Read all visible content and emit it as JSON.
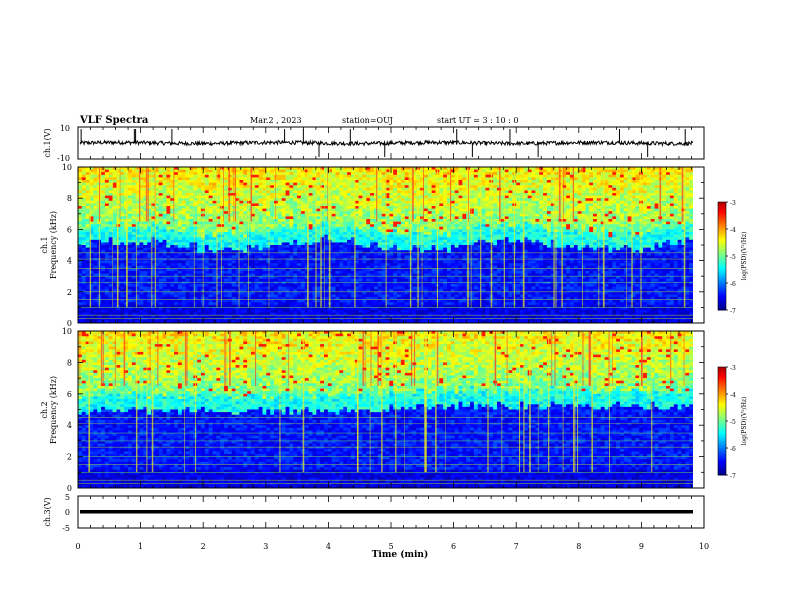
{
  "header": {
    "title": "VLF Spectra",
    "date": "Mar.2 , 2023",
    "station": "station=OUJ",
    "start_time": "start UT = 3 : 10 : 0"
  },
  "chart_data": [
    {
      "type": "line",
      "panel": "ch1-waveform",
      "ylabel": "ch.1(V)",
      "ylim": [
        -10,
        10
      ],
      "yticks": [
        "10",
        "-10"
      ],
      "xlim": [
        0,
        10
      ],
      "description_values": {
        "baseline_approx": 0
      }
    },
    {
      "type": "heatmap",
      "panel": "ch1-spectrogram",
      "ylabel": "Frequency (kHz)",
      "ylabel_channel": "ch.1",
      "ylim": [
        0,
        10
      ],
      "yticks": [
        "0",
        "2",
        "4",
        "6",
        "8",
        "10"
      ],
      "xlim": [
        0,
        10
      ],
      "colorbar": {
        "label": "log(PSD)(V²/Hz)",
        "range": [
          -7,
          -3
        ],
        "ticks": [
          "-3",
          "-4",
          "-5",
          "-6",
          "-7"
        ]
      }
    },
    {
      "type": "heatmap",
      "panel": "ch2-spectrogram",
      "ylabel": "Frequency (kHz)",
      "ylabel_channel": "ch.2",
      "ylim": [
        0,
        10
      ],
      "yticks": [
        "0",
        "2",
        "4",
        "6",
        "8",
        "10"
      ],
      "xlim": [
        0,
        10
      ],
      "colorbar": {
        "label": "log(PSD)(V²/Hz)",
        "range": [
          -7,
          -3
        ],
        "ticks": [
          "-3",
          "-4",
          "-5",
          "-6",
          "-7"
        ]
      }
    },
    {
      "type": "line",
      "panel": "ch3-waveform",
      "ylabel": "ch.3(V)",
      "ylim": [
        -5,
        5
      ],
      "yticks": [
        "5",
        "0",
        "-5"
      ],
      "xlim": [
        0,
        10
      ],
      "description_values": {
        "level_approx": 0
      }
    }
  ],
  "xaxis": {
    "label": "Time (min)",
    "ticks": [
      "0",
      "1",
      "2",
      "3",
      "4",
      "5",
      "6",
      "7",
      "8",
      "9",
      "10"
    ]
  },
  "colors": {
    "spectro_low": "#00007a",
    "spectro_mid": "#00e0c0",
    "spectro_high": "#e02020"
  }
}
